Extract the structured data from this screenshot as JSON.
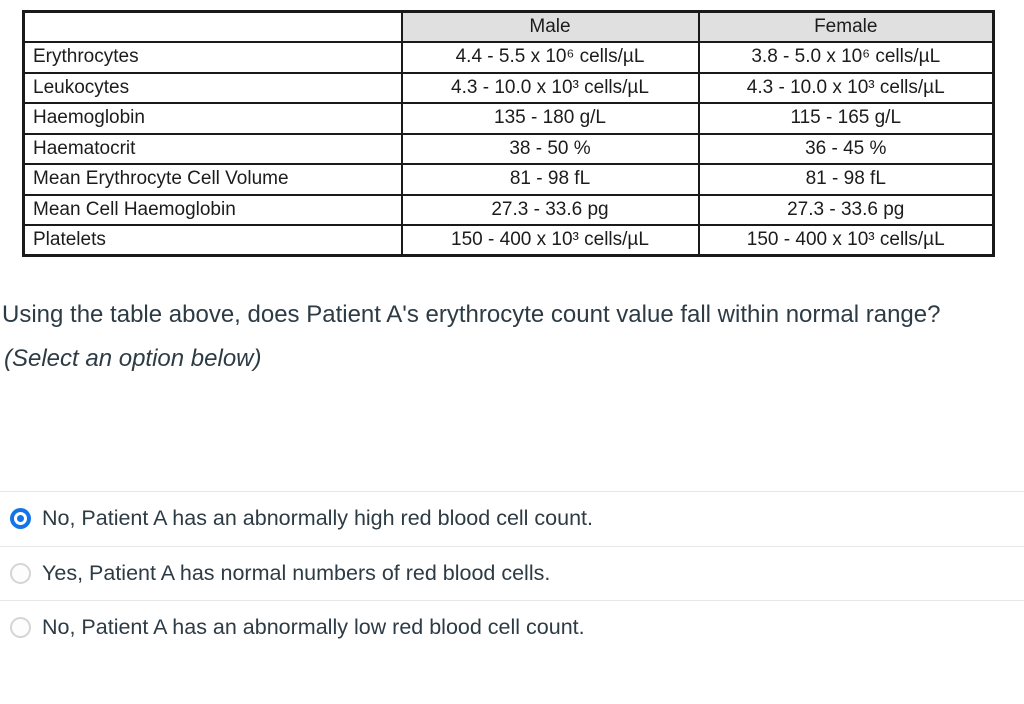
{
  "table": {
    "headers": [
      "",
      "Male",
      "Female"
    ],
    "rows": [
      {
        "label": "Erythrocytes",
        "male": "4.4 - 5.5 x 10⁶ cells/µL",
        "female": "3.8 - 5.0 x 10⁶ cells/µL"
      },
      {
        "label": "Leukocytes",
        "male": "4.3 - 10.0 x 10³ cells/µL",
        "female": "4.3 - 10.0 x 10³ cells/µL"
      },
      {
        "label": "Haemoglobin",
        "male": "135 - 180 g/L",
        "female": "115 - 165 g/L"
      },
      {
        "label": "Haematocrit",
        "male": "38 - 50 %",
        "female": "36 - 45 %"
      },
      {
        "label": "Mean Erythrocyte Cell Volume",
        "male": "81 - 98 fL",
        "female": "81 - 98 fL"
      },
      {
        "label": "Mean Cell Haemoglobin",
        "male": "27.3 - 33.6 pg",
        "female": "27.3 - 33.6 pg"
      },
      {
        "label": "Platelets",
        "male": "150 - 400 x 10³ cells/µL",
        "female": "150 - 400 x 10³ cells/µL"
      }
    ]
  },
  "question": {
    "text": "Using the table above, does Patient A's erythrocyte count value fall within normal range?",
    "note": "(Select an option below)"
  },
  "options": [
    {
      "label": "No, Patient A has an abnormally high red blood cell count.",
      "selected": true
    },
    {
      "label": "Yes, Patient A has normal numbers of red blood cells.",
      "selected": false
    },
    {
      "label": "No, Patient A has an abnormally low red blood cell count.",
      "selected": false
    }
  ],
  "colors": {
    "radio_selected": "#1473e6",
    "header_bg": "#e0e0e0",
    "divider": "#e7e7e7",
    "text": "#2d3b45",
    "table_border": "#1a1a1a"
  }
}
